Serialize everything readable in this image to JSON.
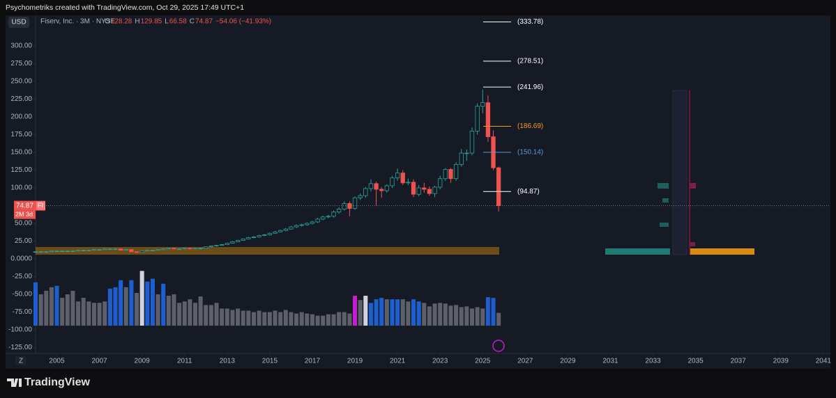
{
  "header": {
    "credit": "Psychometriks created with TradingView.com, Oct 29, 2025 17:49 UTC+1",
    "currency": "USD",
    "symbol": "Fiserv, Inc. · 3M · NYSE",
    "ohlc": [
      {
        "key": "O",
        "value": "128.28"
      },
      {
        "key": "H",
        "value": "129.85"
      },
      {
        "key": "L",
        "value": "66.58"
      },
      {
        "key": "C",
        "value": "74.87"
      }
    ],
    "change": "−54.06 (−41.93%)"
  },
  "price_tag": {
    "price": "74.87",
    "ticker": "FI",
    "countdown": "2M 3d"
  },
  "scale_button": "Z",
  "footer": {
    "logo": "TradingView"
  },
  "chart_data": {
    "type": "candlestick",
    "up_color": "#26a69a",
    "down_color": "#ef5350",
    "xlim": [
      2004,
      2041.3
    ],
    "xticks": [
      2005,
      2007,
      2009,
      2011,
      2013,
      2015,
      2017,
      2019,
      2021,
      2023,
      2025,
      2027,
      2029,
      2031,
      2033,
      2035,
      2037,
      2039,
      2041
    ],
    "ylim": [
      -133.3,
      343.1
    ],
    "yticks": [
      {
        "value": 300,
        "label": "300.00"
      },
      {
        "value": 275,
        "label": "275.00"
      },
      {
        "value": 250,
        "label": "250.00"
      },
      {
        "value": 225,
        "label": "225.00"
      },
      {
        "value": 200,
        "label": "200.00"
      },
      {
        "value": 175,
        "label": "175.00"
      },
      {
        "value": 150,
        "label": "150.00"
      },
      {
        "value": 125,
        "label": "125.00"
      },
      {
        "value": 100,
        "label": "100.00"
      },
      {
        "value": 75,
        "label": "75.00"
      },
      {
        "value": 50,
        "label": "50.00"
      },
      {
        "value": 25,
        "label": "25.00"
      },
      {
        "value": 0,
        "label": "0.0000"
      },
      {
        "value": -25,
        "label": "-25.00"
      },
      {
        "value": -50,
        "label": "-50.00"
      },
      {
        "value": -75,
        "label": "-75.00"
      },
      {
        "value": -100,
        "label": "-100.00"
      },
      {
        "value": -125,
        "label": "-125.00"
      }
    ],
    "x": [
      2004,
      2004.25,
      2004.5,
      2004.75,
      2005,
      2005.25,
      2005.5,
      2005.75,
      2006,
      2006.25,
      2006.5,
      2006.75,
      2007,
      2007.25,
      2007.5,
      2007.75,
      2008,
      2008.25,
      2008.5,
      2008.75,
      2009,
      2009.25,
      2009.5,
      2009.75,
      2010,
      2010.25,
      2010.5,
      2010.75,
      2011,
      2011.25,
      2011.5,
      2011.75,
      2012,
      2012.25,
      2012.5,
      2012.75,
      2013,
      2013.25,
      2013.5,
      2013.75,
      2014,
      2014.25,
      2014.5,
      2014.75,
      2015,
      2015.25,
      2015.5,
      2015.75,
      2016,
      2016.25,
      2016.5,
      2016.75,
      2017,
      2017.25,
      2017.5,
      2017.75,
      2018,
      2018.25,
      2018.5,
      2018.75,
      2019,
      2019.25,
      2019.5,
      2019.75,
      2020,
      2020.25,
      2020.5,
      2020.75,
      2021,
      2021.25,
      2021.5,
      2021.75,
      2022,
      2022.25,
      2022.5,
      2022.75,
      2023,
      2023.25,
      2023.5,
      2023.75,
      2024,
      2024.25,
      2024.5,
      2024.75,
      2025,
      2025.25,
      2025.5,
      2025.75
    ],
    "open": [
      9.5,
      10,
      10,
      10,
      11,
      11,
      11,
      11,
      11,
      12,
      12,
      12,
      13,
      13,
      14,
      14,
      14,
      12,
      13,
      10,
      9,
      11,
      12,
      12,
      13,
      14,
      15,
      14,
      14,
      15,
      14,
      15,
      15,
      17,
      18,
      19,
      20,
      22,
      24,
      26,
      28,
      30,
      31,
      33,
      34,
      36,
      38,
      40,
      42,
      45,
      47,
      48,
      50,
      52,
      56,
      59,
      60,
      66,
      70,
      78,
      71,
      86,
      89,
      99,
      106,
      98,
      96,
      103,
      114,
      121,
      107,
      108,
      91,
      100,
      98,
      92,
      101,
      113,
      126,
      113,
      133,
      149,
      149,
      180,
      215,
      220,
      172,
      128.28
    ],
    "high": [
      10.5,
      10.8,
      10.7,
      11.5,
      11.6,
      11.7,
      11.6,
      11.8,
      12.5,
      12.6,
      12.7,
      13.5,
      13.6,
      14.5,
      14.8,
      14.9,
      14.5,
      13.6,
      13.8,
      10.8,
      11.4,
      12.5,
      12.8,
      13.4,
      14.5,
      15.6,
      15.4,
      14.9,
      15.5,
      15.6,
      15.4,
      15.8,
      17.5,
      18.6,
      19.5,
      20.6,
      22.8,
      24.9,
      26.8,
      28.8,
      30.9,
      32,
      34,
      35.2,
      37,
      39.3,
      41.2,
      43.4,
      46.5,
      48.5,
      49.6,
      51.5,
      53.7,
      57.8,
      60.8,
      62,
      68,
      72.5,
      81,
      81,
      88,
      92,
      101,
      112,
      109,
      101,
      105,
      117,
      127,
      125,
      113,
      112,
      104,
      107,
      102,
      103,
      117,
      128,
      128,
      136,
      155,
      154,
      185,
      219,
      238.59,
      230,
      181,
      129.85
    ],
    "low": [
      9,
      9.4,
      9.5,
      9.6,
      10.5,
      10.4,
      10.5,
      10.6,
      10.8,
      11.5,
      11.4,
      11.7,
      12.5,
      12.7,
      13.4,
      13.3,
      11.5,
      11.6,
      9.6,
      8,
      8.5,
      10.5,
      11.4,
      11.6,
      12.6,
      13.5,
      13.4,
      13.5,
      13.5,
      13.4,
      13.6,
      14.2,
      14.6,
      16.5,
      17.4,
      18.5,
      19.5,
      21.4,
      23.5,
      25.4,
      27.3,
      29.2,
      30.1,
      32,
      33,
      35,
      37,
      39,
      41,
      43.6,
      45.5,
      46.7,
      48.5,
      50.6,
      54.5,
      57.3,
      58,
      63.5,
      68,
      60,
      69,
      83,
      86,
      95,
      75,
      86,
      93,
      100,
      110,
      104,
      104,
      87,
      88,
      93,
      89,
      87,
      98,
      110,
      107,
      110,
      130,
      138,
      146,
      175,
      205,
      165,
      125,
      66.58
    ],
    "close": [
      10,
      10,
      10,
      11,
      11,
      11,
      11,
      11,
      12,
      12,
      12,
      13,
      13,
      14,
      14,
      14,
      12,
      13,
      10,
      9,
      11,
      12,
      12,
      13,
      14,
      15,
      14,
      14,
      15,
      14,
      15,
      15,
      17,
      18,
      19,
      20,
      22,
      24,
      26,
      28,
      30,
      31,
      33,
      34,
      36,
      38,
      40,
      42,
      45,
      47,
      48,
      50,
      52,
      56,
      59,
      60,
      66,
      70,
      78,
      71,
      86,
      89,
      99,
      106,
      98,
      96,
      103,
      114,
      121,
      107,
      108,
      91,
      100,
      98,
      92,
      101,
      113,
      126,
      113,
      133,
      149,
      149,
      180,
      215,
      220,
      172,
      128.28,
      74.87
    ],
    "volume": {
      "values": [
        -33,
        -50,
        -45,
        -40,
        -38,
        -55,
        -50,
        -45,
        -60,
        -55,
        -60,
        -62,
        -62,
        -60,
        -42,
        -40,
        -30,
        -40,
        -30,
        -48,
        -17,
        -32,
        -28,
        -50,
        -35,
        -52,
        -50,
        -62,
        -60,
        -57,
        -62,
        -53,
        -65,
        -65,
        -62,
        -70,
        -70,
        -72,
        -70,
        -73,
        -73,
        -75,
        -73,
        -75,
        -75,
        -73,
        -75,
        -72,
        -75,
        -77,
        -75,
        -77,
        -78,
        -80,
        -80,
        -78,
        -78,
        -75,
        -75,
        -77,
        -52,
        -58,
        -52,
        -62,
        -57,
        -55,
        -57,
        -57,
        -57,
        -57,
        -60,
        -57,
        -60,
        -62,
        -67,
        -63,
        -62,
        -63,
        -66,
        -65,
        -68,
        -67,
        -70,
        -68,
        -70,
        -54,
        -55,
        -76
      ],
      "colors": [
        "#1e5fcf",
        "#5d606b",
        "#5d606b",
        "#5d606b",
        "#1e5fcf",
        "#5d606b",
        "#5d606b",
        "#5d606b",
        "#5d606b",
        "#5d606b",
        "#5d606b",
        "#5d606b",
        "#5d606b",
        "#5d606b",
        "#1e5fcf",
        "#1e5fcf",
        "#1e5fcf",
        "#5d606b",
        "#1e5fcf",
        "#5d606b",
        "#d1d4dc",
        "#1e5fcf",
        "#1e5fcf",
        "#5d606b",
        "#1e5fcf",
        "#5d606b",
        "#5d606b",
        "#5d606b",
        "#5d606b",
        "#5d606b",
        "#5d606b",
        "#5d606b",
        "#5d606b",
        "#5d606b",
        "#5d606b",
        "#5d606b",
        "#5d606b",
        "#5d606b",
        "#5d606b",
        "#5d606b",
        "#5d606b",
        "#5d606b",
        "#5d606b",
        "#5d606b",
        "#5d606b",
        "#5d606b",
        "#5d606b",
        "#5d606b",
        "#5d606b",
        "#5d606b",
        "#5d606b",
        "#5d606b",
        "#5d606b",
        "#5d606b",
        "#5d606b",
        "#5d606b",
        "#5d606b",
        "#5d606b",
        "#5d606b",
        "#5d606b",
        "#c71ccf",
        "#5d606b",
        "#d1d4dc",
        "#1e5fcf",
        "#1e5fcf",
        "#1e5fcf",
        "#5d606b",
        "#1e5fcf",
        "#1e5fcf",
        "#5d606b",
        "#5d606b",
        "#1e5fcf",
        "#1e5fcf",
        "#5d606b",
        "#5d606b",
        "#5d606b",
        "#5d606b",
        "#5d606b",
        "#5d606b",
        "#5d606b",
        "#5d606b",
        "#5d606b",
        "#5d606b",
        "#5d606b",
        "#5d606b",
        "#1e5fcf",
        "#1e5fcf",
        "#5d606b"
      ]
    },
    "levels": [
      {
        "value": 333.78,
        "label": "(333.78)",
        "color": "#ffffff"
      },
      {
        "value": 278.51,
        "label": "(278.51)",
        "color": "#ffffff"
      },
      {
        "value": 241.96,
        "label": "(241.96)",
        "color": "#ffffff"
      },
      {
        "value": 186.69,
        "label": "(186.69)",
        "color": "#f39c26"
      },
      {
        "value": 150.14,
        "label": "(150.14)",
        "color": "#5b9bd5"
      },
      {
        "value": 94.87,
        "label": "(94.87)",
        "color": "#ffffff"
      }
    ]
  }
}
